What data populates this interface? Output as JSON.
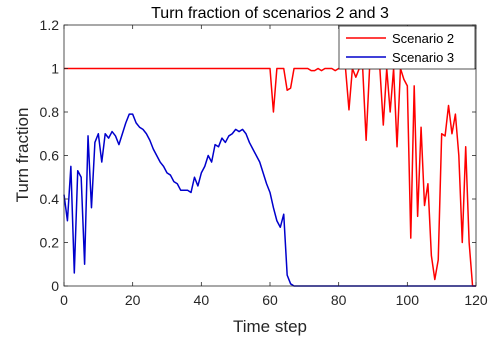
{
  "chart_data": {
    "type": "line",
    "title": "Turn fraction of scenarios 2 and 3",
    "xlabel": "Time step",
    "ylabel": "Turn fraction",
    "xlim": [
      0,
      120
    ],
    "ylim": [
      0,
      1.2
    ],
    "xticks": [
      0,
      20,
      40,
      60,
      80,
      100,
      120
    ],
    "yticks": [
      0,
      0.2,
      0.4,
      0.6,
      0.8,
      1,
      1.2
    ],
    "xtick_labels": [
      "0",
      "20",
      "40",
      "60",
      "80",
      "100",
      "120"
    ],
    "ytick_labels": [
      "0",
      "0.2",
      "0.4",
      "0.6",
      "0.8",
      "1",
      "1.2"
    ],
    "legend_position": "top-right",
    "grid": false,
    "series": [
      {
        "name": "Scenario 2",
        "color": "#ff0000",
        "x": [
          0,
          60,
          61,
          62,
          63,
          64,
          65,
          66,
          67,
          68,
          69,
          70,
          71,
          72,
          73,
          74,
          75,
          76,
          77,
          78,
          79,
          80,
          81,
          82,
          83,
          84,
          85,
          86,
          87,
          88,
          89,
          90,
          91,
          92,
          93,
          94,
          95,
          96,
          97,
          98,
          99,
          100,
          101,
          102,
          103,
          104,
          105,
          106,
          107,
          108,
          109,
          110,
          111,
          112,
          113,
          114,
          115,
          116,
          117,
          118,
          119,
          120
        ],
        "y": [
          1,
          1,
          0.8,
          1,
          1,
          1,
          0.9,
          0.91,
          1,
          1,
          1,
          1,
          1,
          0.99,
          0.99,
          1,
          0.99,
          1,
          1,
          1,
          0.99,
          1,
          1,
          1,
          0.81,
          1,
          0.96,
          1,
          1,
          0.67,
          1,
          1,
          1,
          1,
          0.74,
          1,
          0.8,
          1,
          0.64,
          1,
          0.95,
          0.92,
          0.22,
          0.92,
          0.32,
          0.73,
          0.37,
          0.47,
          0.14,
          0.03,
          0.12,
          0.7,
          0.69,
          0.83,
          0.7,
          0.79,
          0.6,
          0.2,
          0.64,
          0.2,
          0.0,
          0.0
        ]
      },
      {
        "name": "Scenario 3",
        "color": "#0000cc",
        "x": [
          0,
          1,
          2,
          3,
          4,
          5,
          6,
          7,
          8,
          9,
          10,
          11,
          12,
          13,
          14,
          15,
          16,
          17,
          18,
          19,
          20,
          21,
          22,
          23,
          24,
          25,
          26,
          27,
          28,
          29,
          30,
          31,
          32,
          33,
          34,
          35,
          36,
          37,
          38,
          39,
          40,
          41,
          42,
          43,
          44,
          45,
          46,
          47,
          48,
          49,
          50,
          51,
          52,
          53,
          54,
          55,
          56,
          57,
          58,
          59,
          60,
          61,
          62,
          63,
          64,
          65,
          66,
          67,
          68,
          120
        ],
        "y": [
          0.42,
          0.3,
          0.55,
          0.06,
          0.53,
          0.5,
          0.1,
          0.69,
          0.36,
          0.66,
          0.7,
          0.57,
          0.7,
          0.68,
          0.71,
          0.69,
          0.65,
          0.7,
          0.75,
          0.79,
          0.79,
          0.75,
          0.73,
          0.72,
          0.7,
          0.67,
          0.63,
          0.6,
          0.57,
          0.55,
          0.52,
          0.51,
          0.48,
          0.47,
          0.44,
          0.44,
          0.44,
          0.43,
          0.5,
          0.46,
          0.52,
          0.55,
          0.6,
          0.57,
          0.65,
          0.64,
          0.68,
          0.66,
          0.69,
          0.7,
          0.72,
          0.71,
          0.72,
          0.7,
          0.66,
          0.63,
          0.6,
          0.57,
          0.52,
          0.47,
          0.43,
          0.36,
          0.3,
          0.27,
          0.33,
          0.05,
          0.01,
          0.0,
          0.0,
          0.0
        ]
      }
    ]
  }
}
